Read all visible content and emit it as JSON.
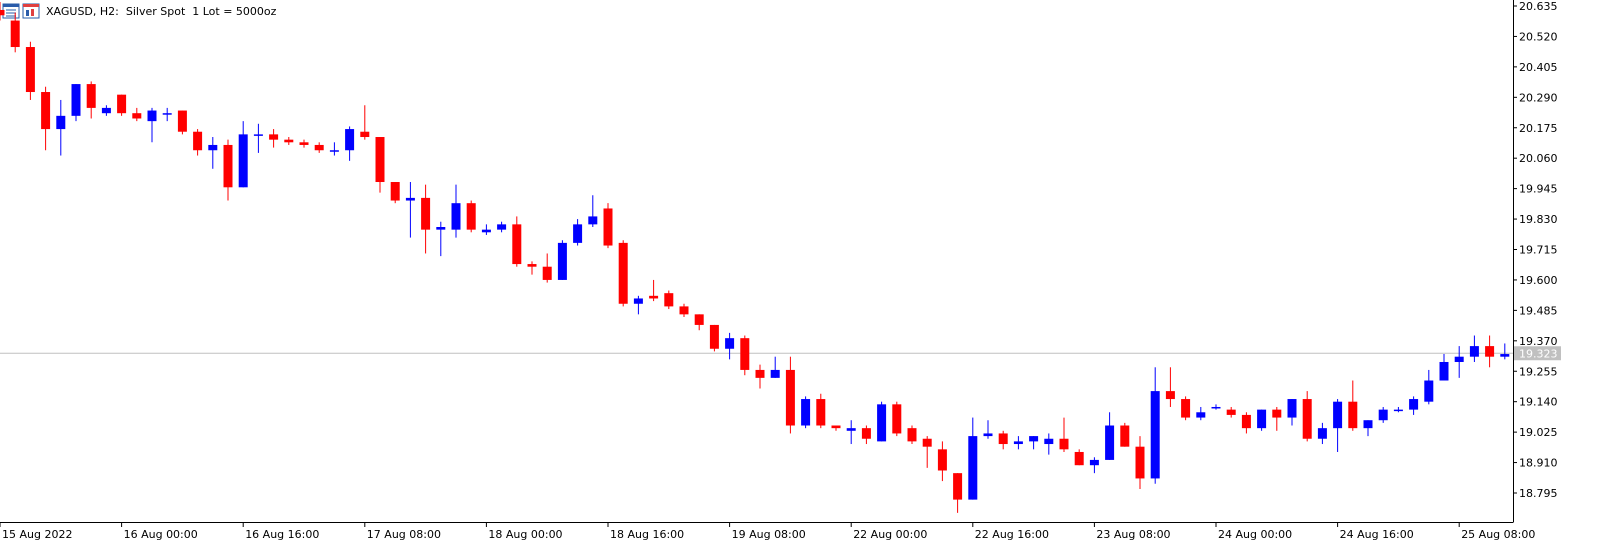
{
  "header": {
    "symbol_line": "XAGUSD, H2:  Silver Spot  1 Lot = 5000oz",
    "icons": [
      "data-window-icon",
      "chart-properties-icon"
    ]
  },
  "colors": {
    "bull": "#0000ff",
    "bear": "#ff0000",
    "wick_bull": "#0000ff",
    "wick_bear": "#ff0000",
    "axis": "#000000",
    "price_line": "#c0c0c0",
    "price_label_bg": "#c0c0c0",
    "price_label_text": "#ffffff"
  },
  "chart_data": {
    "type": "candlestick",
    "symbol": "XAGUSD",
    "timeframe": "H2",
    "ylim": [
      18.68,
      20.65
    ],
    "y_ticks": [
      "20.635",
      "20.520",
      "20.405",
      "20.290",
      "20.175",
      "20.060",
      "19.945",
      "19.830",
      "19.715",
      "19.600",
      "19.485",
      "19.370",
      "19.255",
      "19.140",
      "19.025",
      "18.910",
      "18.795"
    ],
    "x_ticks": [
      {
        "label": "15 Aug 2022",
        "index": 0
      },
      {
        "label": "16 Aug 00:00",
        "index": 8
      },
      {
        "label": "16 Aug 16:00",
        "index": 16
      },
      {
        "label": "17 Aug 08:00",
        "index": 24
      },
      {
        "label": "18 Aug 00:00",
        "index": 32
      },
      {
        "label": "18 Aug 16:00",
        "index": 40
      },
      {
        "label": "19 Aug 08:00",
        "index": 48
      },
      {
        "label": "22 Aug 00:00",
        "index": 56
      },
      {
        "label": "22 Aug 16:00",
        "index": 64
      },
      {
        "label": "23 Aug 08:00",
        "index": 72
      },
      {
        "label": "24 Aug 00:00",
        "index": 80
      },
      {
        "label": "24 Aug 16:00",
        "index": 88
      },
      {
        "label": "25 Aug 08:00",
        "index": 96
      }
    ],
    "current_price": "19.323",
    "candles": [
      {
        "o": 20.62,
        "h": 20.65,
        "l": 20.58,
        "c": 20.6
      },
      {
        "o": 20.58,
        "h": 20.61,
        "l": 20.46,
        "c": 20.48
      },
      {
        "o": 20.48,
        "h": 20.5,
        "l": 20.28,
        "c": 20.31
      },
      {
        "o": 20.31,
        "h": 20.33,
        "l": 20.09,
        "c": 20.17
      },
      {
        "o": 20.17,
        "h": 20.28,
        "l": 20.07,
        "c": 20.22
      },
      {
        "o": 20.22,
        "h": 20.34,
        "l": 20.2,
        "c": 20.34
      },
      {
        "o": 20.34,
        "h": 20.35,
        "l": 20.21,
        "c": 20.25
      },
      {
        "o": 20.23,
        "h": 20.26,
        "l": 20.22,
        "c": 20.25
      },
      {
        "o": 20.3,
        "h": 20.3,
        "l": 20.22,
        "c": 20.23
      },
      {
        "o": 20.23,
        "h": 20.25,
        "l": 20.2,
        "c": 20.21
      },
      {
        "o": 20.2,
        "h": 20.25,
        "l": 20.12,
        "c": 20.24
      },
      {
        "o": 20.23,
        "h": 20.25,
        "l": 20.2,
        "c": 20.23
      },
      {
        "o": 20.24,
        "h": 20.24,
        "l": 20.15,
        "c": 20.16
      },
      {
        "o": 20.16,
        "h": 20.17,
        "l": 20.07,
        "c": 20.09
      },
      {
        "o": 20.09,
        "h": 20.14,
        "l": 20.02,
        "c": 20.11
      },
      {
        "o": 20.11,
        "h": 20.13,
        "l": 19.9,
        "c": 19.95
      },
      {
        "o": 19.95,
        "h": 20.2,
        "l": 19.95,
        "c": 20.15
      },
      {
        "o": 20.15,
        "h": 20.19,
        "l": 20.08,
        "c": 20.15
      },
      {
        "o": 20.15,
        "h": 20.17,
        "l": 20.1,
        "c": 20.13
      },
      {
        "o": 20.13,
        "h": 20.14,
        "l": 20.11,
        "c": 20.12
      },
      {
        "o": 20.12,
        "h": 20.13,
        "l": 20.1,
        "c": 20.11
      },
      {
        "o": 20.11,
        "h": 20.12,
        "l": 20.08,
        "c": 20.09
      },
      {
        "o": 20.09,
        "h": 20.12,
        "l": 20.07,
        "c": 20.09
      },
      {
        "o": 20.09,
        "h": 20.18,
        "l": 20.05,
        "c": 20.17
      },
      {
        "o": 20.16,
        "h": 20.26,
        "l": 20.13,
        "c": 20.14
      },
      {
        "o": 20.14,
        "h": 20.14,
        "l": 19.93,
        "c": 19.97
      },
      {
        "o": 19.97,
        "h": 19.97,
        "l": 19.89,
        "c": 19.9
      },
      {
        "o": 19.9,
        "h": 19.97,
        "l": 19.76,
        "c": 19.91
      },
      {
        "o": 19.91,
        "h": 19.96,
        "l": 19.7,
        "c": 19.79
      },
      {
        "o": 19.79,
        "h": 19.82,
        "l": 19.69,
        "c": 19.8
      },
      {
        "o": 19.79,
        "h": 19.96,
        "l": 19.76,
        "c": 19.89
      },
      {
        "o": 19.89,
        "h": 19.9,
        "l": 19.78,
        "c": 19.79
      },
      {
        "o": 19.78,
        "h": 19.81,
        "l": 19.77,
        "c": 19.79
      },
      {
        "o": 19.79,
        "h": 19.82,
        "l": 19.78,
        "c": 19.81
      },
      {
        "o": 19.81,
        "h": 19.84,
        "l": 19.65,
        "c": 19.66
      },
      {
        "o": 19.66,
        "h": 19.67,
        "l": 19.62,
        "c": 19.65
      },
      {
        "o": 19.65,
        "h": 19.7,
        "l": 19.59,
        "c": 19.6
      },
      {
        "o": 19.6,
        "h": 19.75,
        "l": 19.6,
        "c": 19.74
      },
      {
        "o": 19.74,
        "h": 19.83,
        "l": 19.73,
        "c": 19.81
      },
      {
        "o": 19.81,
        "h": 19.92,
        "l": 19.8,
        "c": 19.84
      },
      {
        "o": 19.87,
        "h": 19.89,
        "l": 19.72,
        "c": 19.73
      },
      {
        "o": 19.74,
        "h": 19.75,
        "l": 19.5,
        "c": 19.51
      },
      {
        "o": 19.51,
        "h": 19.54,
        "l": 19.47,
        "c": 19.53
      },
      {
        "o": 19.54,
        "h": 19.6,
        "l": 19.52,
        "c": 19.53
      },
      {
        "o": 19.55,
        "h": 19.56,
        "l": 19.49,
        "c": 19.5
      },
      {
        "o": 19.5,
        "h": 19.51,
        "l": 19.46,
        "c": 19.47
      },
      {
        "o": 19.47,
        "h": 19.47,
        "l": 19.41,
        "c": 19.43
      },
      {
        "o": 19.43,
        "h": 19.43,
        "l": 19.33,
        "c": 19.34
      },
      {
        "o": 19.34,
        "h": 19.4,
        "l": 19.3,
        "c": 19.38
      },
      {
        "o": 19.38,
        "h": 19.39,
        "l": 19.24,
        "c": 19.26
      },
      {
        "o": 19.26,
        "h": 19.28,
        "l": 19.19,
        "c": 19.23
      },
      {
        "o": 19.23,
        "h": 19.31,
        "l": 19.23,
        "c": 19.26
      },
      {
        "o": 19.26,
        "h": 19.31,
        "l": 19.02,
        "c": 19.05
      },
      {
        "o": 19.05,
        "h": 19.16,
        "l": 19.04,
        "c": 19.15
      },
      {
        "o": 19.15,
        "h": 19.17,
        "l": 19.04,
        "c": 19.05
      },
      {
        "o": 19.05,
        "h": 19.05,
        "l": 19.03,
        "c": 19.04
      },
      {
        "o": 19.03,
        "h": 19.07,
        "l": 18.98,
        "c": 19.04
      },
      {
        "o": 19.04,
        "h": 19.05,
        "l": 18.98,
        "c": 19.0
      },
      {
        "o": 18.99,
        "h": 19.14,
        "l": 18.99,
        "c": 19.13
      },
      {
        "o": 19.13,
        "h": 19.14,
        "l": 19.01,
        "c": 19.02
      },
      {
        "o": 19.04,
        "h": 19.05,
        "l": 18.98,
        "c": 18.99
      },
      {
        "o": 19.0,
        "h": 19.01,
        "l": 18.89,
        "c": 18.97
      },
      {
        "o": 18.96,
        "h": 18.99,
        "l": 18.84,
        "c": 18.88
      },
      {
        "o": 18.87,
        "h": 18.87,
        "l": 18.72,
        "c": 18.77
      },
      {
        "o": 18.77,
        "h": 19.08,
        "l": 18.77,
        "c": 19.01
      },
      {
        "o": 19.01,
        "h": 19.07,
        "l": 19.0,
        "c": 19.02
      },
      {
        "o": 19.02,
        "h": 19.03,
        "l": 18.96,
        "c": 18.98
      },
      {
        "o": 18.98,
        "h": 19.01,
        "l": 18.96,
        "c": 18.99
      },
      {
        "o": 18.99,
        "h": 19.01,
        "l": 18.96,
        "c": 19.01
      },
      {
        "o": 18.98,
        "h": 19.02,
        "l": 18.94,
        "c": 19.0
      },
      {
        "o": 19.0,
        "h": 19.08,
        "l": 18.95,
        "c": 18.96
      },
      {
        "o": 18.95,
        "h": 18.96,
        "l": 18.9,
        "c": 18.9
      },
      {
        "o": 18.9,
        "h": 18.93,
        "l": 18.87,
        "c": 18.92
      },
      {
        "o": 18.92,
        "h": 19.1,
        "l": 18.92,
        "c": 19.05
      },
      {
        "o": 19.05,
        "h": 19.06,
        "l": 18.97,
        "c": 18.97
      },
      {
        "o": 18.97,
        "h": 19.01,
        "l": 18.81,
        "c": 18.85
      },
      {
        "o": 18.85,
        "h": 19.27,
        "l": 18.83,
        "c": 19.18
      },
      {
        "o": 19.18,
        "h": 19.27,
        "l": 19.12,
        "c": 19.15
      },
      {
        "o": 19.15,
        "h": 19.16,
        "l": 19.07,
        "c": 19.08
      },
      {
        "o": 19.08,
        "h": 19.12,
        "l": 19.07,
        "c": 19.1
      },
      {
        "o": 19.12,
        "h": 19.13,
        "l": 19.11,
        "c": 19.12
      },
      {
        "o": 19.11,
        "h": 19.12,
        "l": 19.08,
        "c": 19.09
      },
      {
        "o": 19.09,
        "h": 19.1,
        "l": 19.02,
        "c": 19.04
      },
      {
        "o": 19.04,
        "h": 19.11,
        "l": 19.03,
        "c": 19.11
      },
      {
        "o": 19.11,
        "h": 19.12,
        "l": 19.03,
        "c": 19.08
      },
      {
        "o": 19.08,
        "h": 19.15,
        "l": 19.05,
        "c": 19.15
      },
      {
        "o": 19.15,
        "h": 19.18,
        "l": 18.99,
        "c": 19.0
      },
      {
        "o": 19.0,
        "h": 19.06,
        "l": 18.98,
        "c": 19.04
      },
      {
        "o": 19.04,
        "h": 19.15,
        "l": 18.95,
        "c": 19.14
      },
      {
        "o": 19.14,
        "h": 19.22,
        "l": 19.03,
        "c": 19.04
      },
      {
        "o": 19.04,
        "h": 19.07,
        "l": 19.01,
        "c": 19.07
      },
      {
        "o": 19.07,
        "h": 19.12,
        "l": 19.06,
        "c": 19.11
      },
      {
        "o": 19.11,
        "h": 19.12,
        "l": 19.1,
        "c": 19.11
      },
      {
        "o": 19.11,
        "h": 19.16,
        "l": 19.09,
        "c": 19.15
      },
      {
        "o": 19.14,
        "h": 19.26,
        "l": 19.13,
        "c": 19.22
      },
      {
        "o": 19.22,
        "h": 19.32,
        "l": 19.22,
        "c": 19.29
      },
      {
        "o": 19.29,
        "h": 19.35,
        "l": 19.23,
        "c": 19.31
      },
      {
        "o": 19.31,
        "h": 19.39,
        "l": 19.29,
        "c": 19.35
      },
      {
        "o": 19.35,
        "h": 19.39,
        "l": 19.27,
        "c": 19.31
      },
      {
        "o": 19.31,
        "h": 19.36,
        "l": 19.3,
        "c": 19.32
      }
    ]
  }
}
